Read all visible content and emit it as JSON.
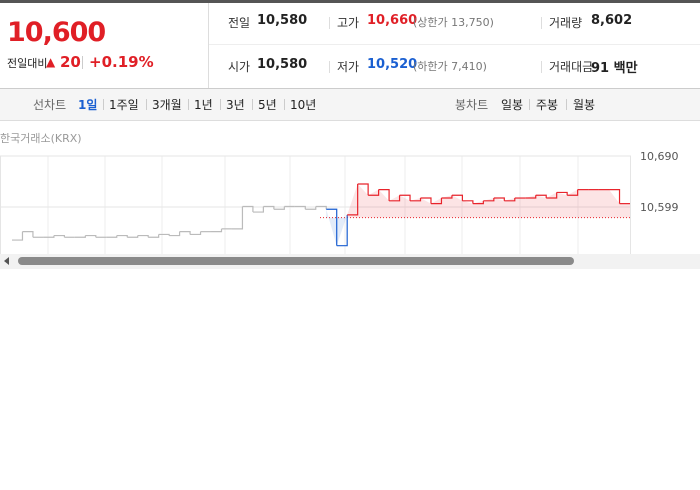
{
  "header": {
    "price": "10,600",
    "change_label": "전일대비",
    "change": "20",
    "rate": "+0.19%",
    "stats": [
      [
        {
          "label": "전일",
          "value": "10,580"
        },
        {
          "label": "고가",
          "value": "10,660",
          "extra": "(상한가 13,750)"
        },
        {
          "label": "거래량",
          "value": "8,602"
        }
      ],
      [
        {
          "label": "시가",
          "value": "10,580"
        },
        {
          "label": "저가",
          "value": "10,520",
          "extra": "(하한가 7,410)"
        },
        {
          "label": "거래대금",
          "value": "91 백만"
        }
      ]
    ]
  },
  "tabs": {
    "line_label": "선차트",
    "line_items": [
      "1일",
      "1주일",
      "3개월",
      "1년",
      "3년",
      "5년",
      "10년"
    ],
    "candle_label": "봉차트",
    "candle_items": [
      "일봉",
      "주봉",
      "월봉"
    ]
  },
  "chart_data": {
    "type": "line",
    "source": "한국거래소(KRX)",
    "baseline": 10580,
    "ylim": [
      10508,
      10690
    ],
    "yticks": [
      {
        "value": 10690,
        "label": "10,690"
      },
      {
        "value": 10599,
        "label": "10,599"
      }
    ],
    "below_color": "#1a5fd1",
    "series": [
      {
        "color": "#bbbbbb",
        "values": [
          10540,
          10555,
          10545,
          10545,
          10548,
          10545,
          10545,
          10548,
          10545,
          10545,
          10548,
          10545,
          10548,
          10545,
          10550,
          10548,
          10555,
          10550,
          10555,
          10555,
          10560,
          10560,
          10600,
          10590,
          10600,
          10595,
          10600,
          10600,
          10595,
          10600,
          10595,
          null,
          null,
          null,
          null,
          null,
          null,
          null,
          null,
          null,
          null,
          null,
          null,
          null,
          null,
          null,
          null,
          null,
          null,
          null,
          null,
          null,
          null,
          null,
          null,
          null,
          null,
          null,
          null,
          null
        ]
      },
      {
        "color": "#e8242c",
        "values": [
          null,
          null,
          null,
          null,
          null,
          null,
          null,
          null,
          null,
          null,
          null,
          null,
          null,
          null,
          null,
          null,
          null,
          null,
          null,
          null,
          null,
          null,
          null,
          null,
          null,
          null,
          null,
          null,
          null,
          null,
          10595,
          10530,
          10585,
          10640,
          10620,
          10630,
          10610,
          10620,
          10610,
          10615,
          10605,
          10615,
          10620,
          10610,
          10605,
          10610,
          10615,
          10610,
          10615,
          10615,
          10620,
          10615,
          10625,
          10620,
          10630,
          10630,
          10630,
          10630,
          10605,
          10605
        ]
      }
    ]
  }
}
